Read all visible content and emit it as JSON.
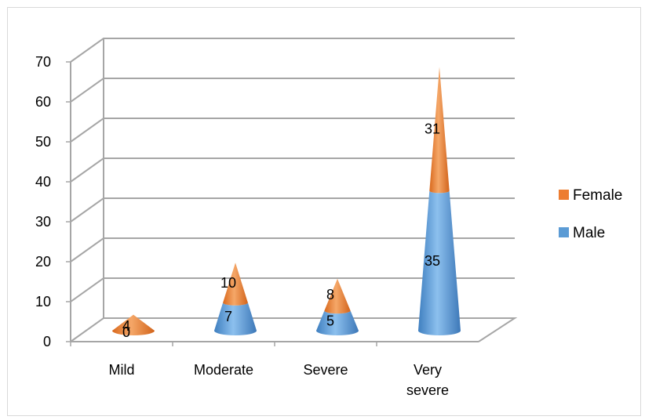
{
  "chart_data": {
    "type": "bar",
    "subtype": "stacked-3d-cone",
    "categories": [
      "Mild",
      "Moderate",
      "Severe",
      "Very severe"
    ],
    "series": [
      {
        "name": "Male",
        "values": [
          0,
          7,
          5,
          35
        ],
        "color": "#5b9bd5"
      },
      {
        "name": "Female",
        "values": [
          4,
          10,
          8,
          31
        ],
        "color": "#ed7d31"
      }
    ],
    "ylim": [
      0,
      70
    ],
    "yticks": [
      0,
      10,
      20,
      30,
      40,
      50,
      60,
      70
    ],
    "grid": true,
    "legend_position": "right",
    "legend_order": [
      "Female",
      "Male"
    ]
  }
}
